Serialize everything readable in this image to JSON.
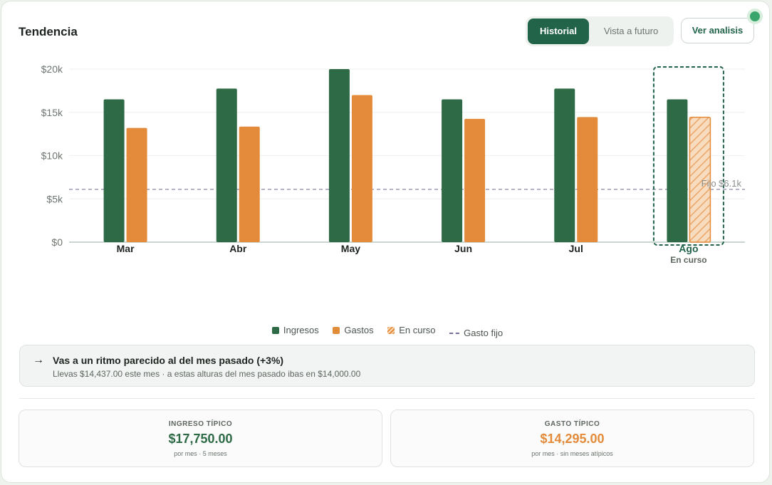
{
  "header": {
    "title": "Tendencia"
  },
  "toggle": {
    "historial": "Historial",
    "futuro": "Vista a futuro"
  },
  "actions": {
    "ver_analisis": "Ver analisis"
  },
  "colors": {
    "ingresos": "#2d6a45",
    "gastos": "#e38b3a",
    "accent": "#22644a",
    "fixed_line": "#7b6f9b"
  },
  "chart_data": {
    "type": "bar",
    "categories": [
      "Mar",
      "Abr",
      "May",
      "Jun",
      "Jul",
      "Ago"
    ],
    "series": [
      {
        "name": "Ingresos",
        "values": [
          16500,
          17750,
          20000,
          16500,
          17750,
          16500
        ]
      },
      {
        "name": "Gastos",
        "values": [
          13200,
          13350,
          17000,
          14250,
          14450,
          14437
        ]
      }
    ],
    "in_progress_index": 5,
    "in_progress_label": "En curso",
    "reference_line": {
      "value": 6100,
      "label": "Fijo $6.1k"
    },
    "ylim": [
      0,
      20000
    ],
    "yticks": [
      "$0",
      "$5k",
      "$10k",
      "$15k",
      "$20k"
    ],
    "ytick_values": [
      0,
      5000,
      10000,
      15000,
      20000
    ],
    "legend": [
      "Ingresos",
      "Gastos",
      "En curso",
      "Gasto fijo"
    ],
    "legend_position": "bottom",
    "grid": true
  },
  "insight": {
    "arrow": "→",
    "headline": "Vas a un ritmo parecido al del mes pasado (+3%)",
    "detail": "Llevas $14,437.00 este mes · a estas alturas del mes pasado ibas en $14,000.00"
  },
  "stats": {
    "ingreso": {
      "label": "INGRESO TÍPICO",
      "value": "$17,750.00",
      "note": "por mes · 5 meses"
    },
    "gasto": {
      "label": "GASTO TÍPICO",
      "value": "$14,295.00",
      "note": "por mes · sin meses atípicos"
    }
  }
}
